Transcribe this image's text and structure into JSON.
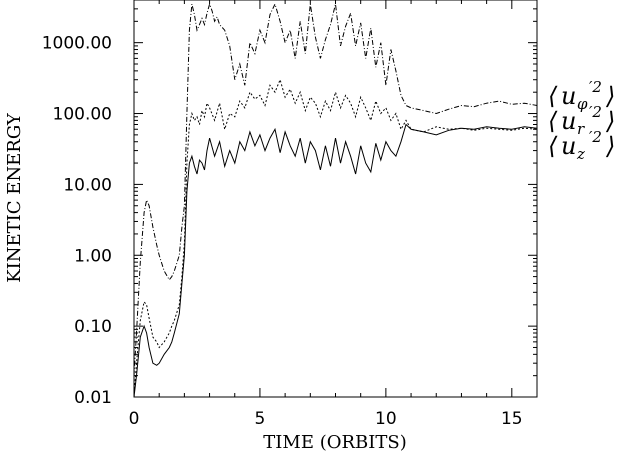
{
  "chart_data": {
    "type": "line",
    "title": "",
    "xlabel": "TIME (ORBITS)",
    "ylabel": "KINETIC ENERGY",
    "xlim": [
      0,
      16
    ],
    "ylim": [
      0.01,
      4000
    ],
    "yscale": "log",
    "x_ticks": [
      0,
      5,
      10,
      15
    ],
    "x_tick_labels": [
      "0",
      "5",
      "10",
      "15"
    ],
    "y_ticks": [
      0.01,
      0.1,
      1,
      10,
      100,
      1000
    ],
    "y_tick_labels": [
      "0.01",
      "0.10",
      "1.00",
      "10.00",
      "100.00",
      "1000.00"
    ],
    "grid": false,
    "legend_position": "right",
    "series": [
      {
        "legend": {
          "base": "u",
          "sub": "φ",
          "sup": "′2",
          "order": 1
        },
        "style": "dash-dot",
        "x": [
          0.0,
          0.1,
          0.25,
          0.4,
          0.5,
          0.6,
          0.75,
          0.9,
          1.0,
          1.2,
          1.4,
          1.5,
          1.6,
          1.8,
          1.9,
          2.0,
          2.1,
          2.2,
          2.3,
          2.4,
          2.5,
          2.6,
          2.7,
          2.8,
          2.9,
          3.0,
          3.1,
          3.2,
          3.3,
          3.4,
          3.6,
          3.8,
          4.0,
          4.2,
          4.4,
          4.6,
          4.8,
          5.0,
          5.2,
          5.4,
          5.6,
          5.8,
          6.0,
          6.2,
          6.4,
          6.6,
          6.8,
          7.0,
          7.2,
          7.4,
          7.6,
          7.8,
          8.0,
          8.2,
          8.4,
          8.6,
          8.8,
          9.0,
          9.2,
          9.4,
          9.6,
          9.8,
          10.0,
          10.2,
          10.4,
          10.6,
          10.8,
          11.0,
          11.5,
          12.0,
          12.5,
          13.0,
          13.5,
          14.0,
          14.5,
          15.0,
          15.5,
          16.0
        ],
        "y": [
          0.02,
          0.08,
          0.8,
          4.0,
          6.0,
          5.0,
          2.5,
          1.4,
          1.0,
          0.6,
          0.45,
          0.5,
          0.6,
          1.0,
          2.5,
          5.0,
          100,
          1500,
          3500,
          2500,
          1500,
          1800,
          2200,
          1800,
          2600,
          3500,
          2800,
          2000,
          2300,
          1800,
          1500,
          900,
          300,
          500,
          250,
          1000,
          700,
          1500,
          1000,
          2500,
          3500,
          2000,
          1000,
          1500,
          600,
          2000,
          700,
          3500,
          1200,
          600,
          1100,
          1800,
          3500,
          900,
          1700,
          2600,
          900,
          1900,
          600,
          1600,
          450,
          1000,
          250,
          800,
          400,
          180,
          130,
          120,
          110,
          100,
          115,
          130,
          125,
          140,
          150,
          135,
          140,
          130
        ]
      },
      {
        "legend": {
          "base": "u",
          "sub": "r",
          "sup": "′2",
          "order": 2
        },
        "style": "dotted",
        "x": [
          0.0,
          0.1,
          0.25,
          0.4,
          0.5,
          0.6,
          0.75,
          0.9,
          1.0,
          1.2,
          1.4,
          1.5,
          1.6,
          1.8,
          1.9,
          2.0,
          2.1,
          2.2,
          2.3,
          2.4,
          2.5,
          2.6,
          2.7,
          2.8,
          2.9,
          3.0,
          3.2,
          3.4,
          3.6,
          3.8,
          4.0,
          4.2,
          4.4,
          4.6,
          4.8,
          5.0,
          5.2,
          5.4,
          5.6,
          5.8,
          6.0,
          6.2,
          6.4,
          6.6,
          6.8,
          7.0,
          7.2,
          7.4,
          7.6,
          7.8,
          8.0,
          8.2,
          8.4,
          8.6,
          8.8,
          9.0,
          9.2,
          9.4,
          9.6,
          9.8,
          10.0,
          10.2,
          10.4,
          10.6,
          10.8,
          11.0,
          11.5,
          12.0,
          12.5,
          13.0,
          13.5,
          14.0,
          14.5,
          15.0,
          15.5,
          16.0
        ],
        "y": [
          0.01,
          0.03,
          0.12,
          0.22,
          0.2,
          0.13,
          0.07,
          0.06,
          0.05,
          0.06,
          0.08,
          0.1,
          0.12,
          0.2,
          0.5,
          1.5,
          20,
          70,
          100,
          80,
          90,
          70,
          110,
          90,
          140,
          120,
          80,
          140,
          60,
          100,
          90,
          150,
          120,
          200,
          160,
          180,
          130,
          250,
          200,
          300,
          170,
          220,
          140,
          200,
          110,
          170,
          140,
          90,
          150,
          110,
          200,
          120,
          180,
          140,
          90,
          170,
          120,
          80,
          150,
          100,
          120,
          80,
          100,
          60,
          80,
          60,
          55,
          65,
          60,
          62,
          58,
          62,
          60,
          58,
          62,
          60
        ]
      },
      {
        "legend": {
          "base": "u",
          "sub": "z",
          "sup": "′2",
          "order": 3
        },
        "style": "solid",
        "x": [
          0.0,
          0.1,
          0.25,
          0.4,
          0.5,
          0.6,
          0.75,
          0.9,
          1.0,
          1.2,
          1.4,
          1.5,
          1.6,
          1.8,
          1.9,
          2.0,
          2.1,
          2.2,
          2.3,
          2.4,
          2.5,
          2.6,
          2.7,
          2.8,
          2.9,
          3.0,
          3.2,
          3.4,
          3.6,
          3.8,
          4.0,
          4.2,
          4.4,
          4.6,
          4.8,
          5.0,
          5.2,
          5.4,
          5.6,
          5.8,
          6.0,
          6.2,
          6.4,
          6.6,
          6.8,
          7.0,
          7.2,
          7.4,
          7.6,
          7.8,
          8.0,
          8.2,
          8.4,
          8.6,
          8.8,
          9.0,
          9.2,
          9.4,
          9.6,
          9.8,
          10.0,
          10.2,
          10.4,
          10.6,
          10.8,
          11.0,
          11.5,
          12.0,
          12.5,
          13.0,
          13.5,
          14.0,
          14.5,
          15.0,
          15.5,
          16.0
        ],
        "y": [
          0.01,
          0.02,
          0.07,
          0.1,
          0.08,
          0.05,
          0.03,
          0.028,
          0.03,
          0.04,
          0.05,
          0.06,
          0.08,
          0.15,
          0.4,
          1.0,
          8,
          20,
          25,
          18,
          14,
          22,
          20,
          16,
          30,
          45,
          25,
          40,
          18,
          30,
          20,
          40,
          30,
          55,
          35,
          50,
          30,
          45,
          60,
          28,
          55,
          35,
          25,
          45,
          20,
          40,
          30,
          16,
          35,
          18,
          45,
          20,
          40,
          25,
          14,
          35,
          20,
          15,
          38,
          22,
          40,
          30,
          25,
          40,
          70,
          60,
          55,
          50,
          58,
          62,
          60,
          65,
          62,
          60,
          65,
          62
        ]
      }
    ]
  }
}
